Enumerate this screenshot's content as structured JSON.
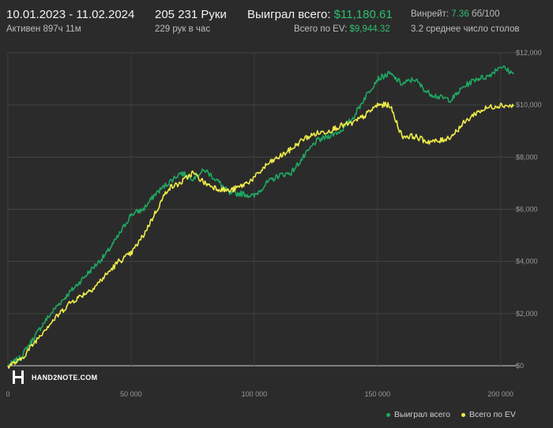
{
  "header": {
    "date_range": "10.01.2023 - 11.02.2024",
    "active": "Активен 897ч 11м",
    "hands": "205 231 Руки",
    "hands_per_hour": "229 рук в час",
    "won_label": "Выиграл всего:",
    "won_value": "$11,180.61",
    "ev_label": "Всего по EV:",
    "ev_value": "$9,944.32",
    "winrate_label": "Винрейт:",
    "winrate_value": "7.36",
    "winrate_unit": "бб/100",
    "tables": "3.2 среднее число столов"
  },
  "watermark": "HAND2NOTE.COM",
  "colors": {
    "won": "#1fa862",
    "ev": "#f0ec4a",
    "background": "#2b2b2b",
    "grid": "#444444"
  },
  "chart_data": {
    "type": "line",
    "x_ticks": [
      "0",
      "50 000",
      "100 000",
      "150 000",
      "200 000"
    ],
    "y_ticks": [
      "$0",
      "$2,000",
      "$4,000",
      "$6,000",
      "$8,000",
      "$10,000",
      "$12,000"
    ],
    "xlim": [
      0,
      205231
    ],
    "ylim": [
      0,
      12000
    ],
    "grid": true,
    "legend_position": "bottom-right",
    "series": [
      {
        "name": "Выиграл всего",
        "color": "#1fa862",
        "points": [
          [
            0,
            0
          ],
          [
            5000,
            300
          ],
          [
            10000,
            1000
          ],
          [
            15000,
            1700
          ],
          [
            20000,
            2300
          ],
          [
            25000,
            2800
          ],
          [
            30000,
            3300
          ],
          [
            35000,
            3800
          ],
          [
            40000,
            4300
          ],
          [
            45000,
            5000
          ],
          [
            50000,
            5800
          ],
          [
            55000,
            6000
          ],
          [
            60000,
            6600
          ],
          [
            65000,
            7000
          ],
          [
            70000,
            7400
          ],
          [
            75000,
            7200
          ],
          [
            80000,
            7500
          ],
          [
            85000,
            7100
          ],
          [
            90000,
            6600
          ],
          [
            95000,
            6600
          ],
          [
            100000,
            6500
          ],
          [
            105000,
            7000
          ],
          [
            110000,
            7300
          ],
          [
            115000,
            7400
          ],
          [
            120000,
            8000
          ],
          [
            125000,
            8600
          ],
          [
            130000,
            8800
          ],
          [
            135000,
            9000
          ],
          [
            140000,
            9500
          ],
          [
            145000,
            10300
          ],
          [
            150000,
            11000
          ],
          [
            155000,
            11200
          ],
          [
            160000,
            10800
          ],
          [
            165000,
            11000
          ],
          [
            170000,
            10500
          ],
          [
            175000,
            10300
          ],
          [
            180000,
            10200
          ],
          [
            185000,
            10700
          ],
          [
            190000,
            11000
          ],
          [
            195000,
            11100
          ],
          [
            200000,
            11500
          ],
          [
            205231,
            11181
          ]
        ]
      },
      {
        "name": "Всего по EV",
        "color": "#f0ec4a",
        "points": [
          [
            0,
            0
          ],
          [
            5000,
            200
          ],
          [
            10000,
            800
          ],
          [
            15000,
            1400
          ],
          [
            20000,
            1900
          ],
          [
            25000,
            2400
          ],
          [
            30000,
            2700
          ],
          [
            35000,
            3000
          ],
          [
            40000,
            3500
          ],
          [
            45000,
            4000
          ],
          [
            50000,
            4300
          ],
          [
            55000,
            5000
          ],
          [
            60000,
            5900
          ],
          [
            65000,
            6800
          ],
          [
            70000,
            7000
          ],
          [
            75000,
            7400
          ],
          [
            80000,
            7000
          ],
          [
            85000,
            6800
          ],
          [
            90000,
            6700
          ],
          [
            95000,
            6900
          ],
          [
            100000,
            7200
          ],
          [
            105000,
            7700
          ],
          [
            110000,
            8000
          ],
          [
            115000,
            8300
          ],
          [
            120000,
            8700
          ],
          [
            125000,
            8900
          ],
          [
            130000,
            9000
          ],
          [
            135000,
            9200
          ],
          [
            140000,
            9300
          ],
          [
            145000,
            9600
          ],
          [
            150000,
            10000
          ],
          [
            155000,
            10000
          ],
          [
            160000,
            8800
          ],
          [
            165000,
            8800
          ],
          [
            170000,
            8600
          ],
          [
            175000,
            8600
          ],
          [
            180000,
            8800
          ],
          [
            185000,
            9300
          ],
          [
            190000,
            9700
          ],
          [
            195000,
            9900
          ],
          [
            200000,
            10000
          ],
          [
            205231,
            9944
          ]
        ]
      }
    ]
  }
}
